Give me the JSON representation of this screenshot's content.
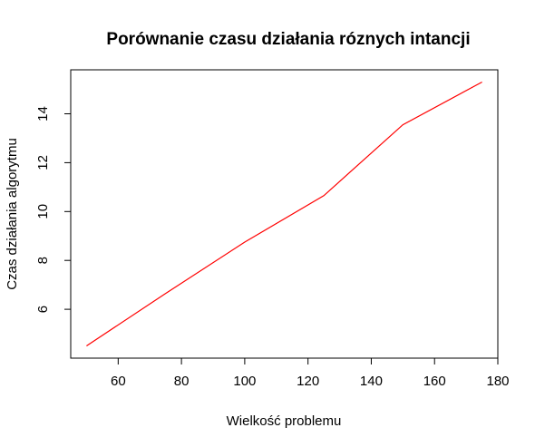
{
  "chart_data": {
    "type": "line",
    "title": "Porównanie czasu działania róznych intancji",
    "xlabel": "Wielkość problemu",
    "ylabel": "Czas działania algorytmu",
    "x": [
      50,
      75,
      100,
      125,
      150,
      175
    ],
    "series": [
      {
        "values": [
          4.5,
          6.65,
          8.75,
          10.65,
          13.55,
          15.3
        ],
        "color": "#ff0000"
      }
    ],
    "xlim": [
      45,
      180
    ],
    "ylim": [
      4.0,
      15.8
    ],
    "xticks": [
      60,
      80,
      100,
      120,
      140,
      160,
      180
    ],
    "yticks": [
      6,
      8,
      10,
      12,
      14
    ],
    "grid": false,
    "box": true
  }
}
